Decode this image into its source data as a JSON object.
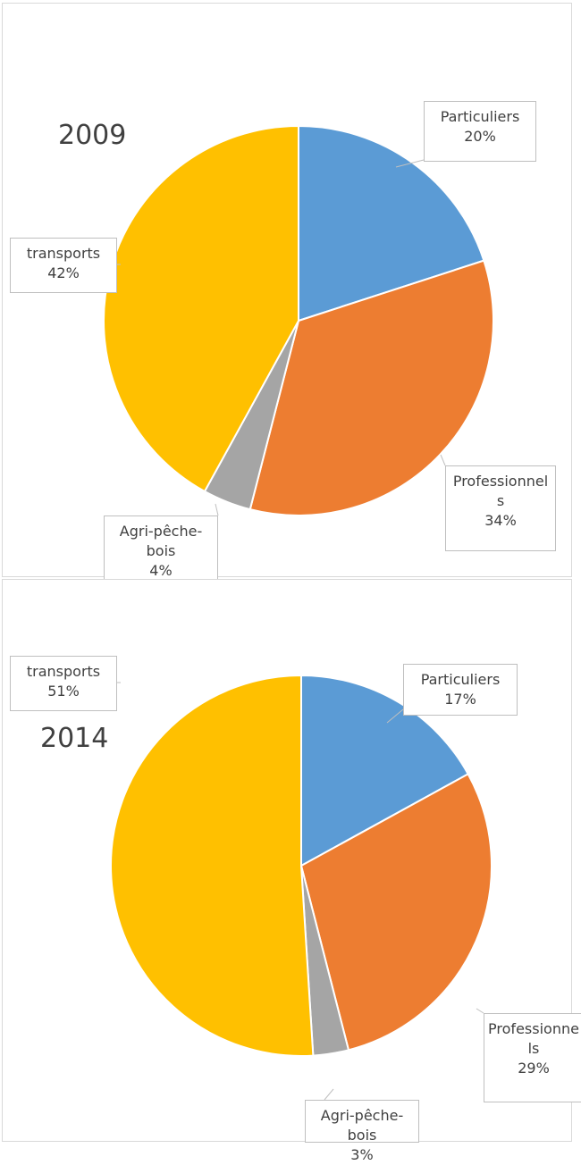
{
  "chart_data": [
    {
      "type": "pie",
      "title": "2009",
      "categories": [
        "Particuliers",
        "Professionnels",
        "Agri-pêche-bois",
        "transports"
      ],
      "values": [
        20,
        34,
        4,
        42
      ],
      "value_labels": [
        "20%",
        "34%",
        "4%",
        "42%"
      ],
      "colors": [
        "#5b9bd5",
        "#ed7d31",
        "#a5a5a5",
        "#ffc000"
      ]
    },
    {
      "type": "pie",
      "title": "2014",
      "categories": [
        "Particuliers",
        "Professionnels",
        "Agri-pêche-bois",
        "transports"
      ],
      "values": [
        17,
        29,
        3,
        51
      ],
      "value_labels": [
        "17%",
        "29%",
        "3%",
        "51%"
      ],
      "colors": [
        "#5b9bd5",
        "#ed7d31",
        "#a5a5a5",
        "#ffc000"
      ]
    }
  ]
}
